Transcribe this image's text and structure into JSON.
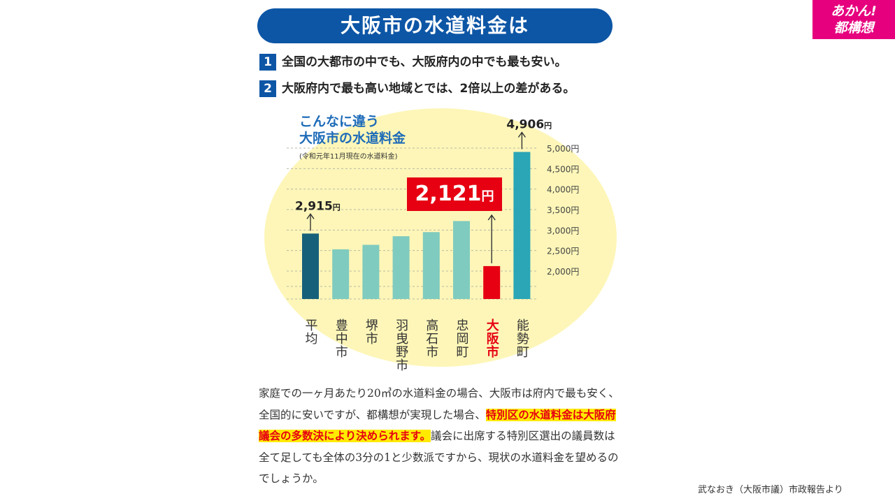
{
  "badge": {
    "line1": "あかん!",
    "line2": "都構想"
  },
  "title": "大阪市の水道料金は",
  "points": [
    {
      "num": "1",
      "text": "全国の大都市の中でも、大阪府内の中でも最も安い。"
    },
    {
      "num": "2",
      "text": "大阪府内で最も高い地域とでは、2倍以上の差がある。"
    }
  ],
  "chart_heading": {
    "line1": "こんなに違う",
    "line2": "大阪市の水道料金",
    "note": "(令和元年11月現在の水道料金)"
  },
  "highlight": {
    "value": "2,121",
    "unit": "円"
  },
  "colors": {
    "title_bg": "#0d56a6",
    "badge_bg": "#e6007e",
    "highlight": "#e60012",
    "ellipse": "#fdf6b8"
  },
  "chart_data": {
    "type": "bar",
    "categories": [
      "平均",
      "豊中市",
      "堺市",
      "羽曳野市",
      "高石市",
      "忠岡町",
      "大阪市",
      "能勢町"
    ],
    "values": [
      2915,
      2530,
      2640,
      2850,
      2950,
      3220,
      2121,
      4906
    ],
    "bar_colors": [
      "#17607a",
      "#7fcbbf",
      "#7fcbbf",
      "#7fcbbf",
      "#7fcbbf",
      "#7fcbbf",
      "#e60012",
      "#2aa6b6"
    ],
    "label_colors": [
      "#333333",
      "#333333",
      "#333333",
      "#333333",
      "#333333",
      "#333333",
      "#e60012",
      "#333333"
    ],
    "yticks": [
      "2,000円",
      "2,500円",
      "3,000円",
      "3,500円",
      "4,000円",
      "4,500円",
      "5,000円"
    ],
    "ytick_values": [
      2000,
      2500,
      3000,
      3500,
      4000,
      4500,
      5000
    ],
    "callouts": [
      {
        "index": 0,
        "value": "2,915",
        "unit": "円"
      },
      {
        "index": 7,
        "value": "4,906",
        "unit": "円"
      }
    ],
    "grid": true
  },
  "body": {
    "part1": "家庭での一ヶ月あたり20㎥の水道料金の場合、大阪市は府内で最も安く、全国的に安いですが、都構想が実現した場合、",
    "hl1": "特別区",
    "hl2": "の水道料金は大阪府議会の多数決により決められます。",
    "part2": "議会に出席する特別区選出の議員数は全て足しても全体の3分の1と少数派ですから、現状の水道料金を望めるのでしょうか。"
  },
  "source": "武なおき（大阪市議）市政報告より"
}
